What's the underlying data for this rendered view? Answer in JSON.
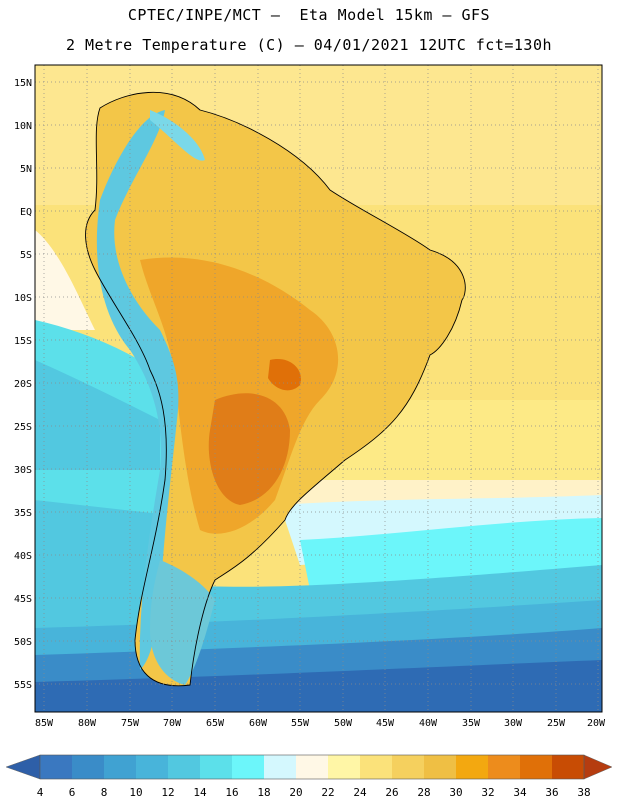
{
  "header": {
    "line1": "CPTEC/INPE/MCT –  Eta Model 15km – GFS",
    "line2": "2 Metre Temperature (C) – 04/01/2021 12UTC fct=130h"
  },
  "map": {
    "lat_labels": [
      "15N",
      "10N",
      "5N",
      "EQ",
      "5S",
      "10S",
      "15S",
      "20S",
      "25S",
      "30S",
      "35S",
      "40S",
      "45S",
      "50S",
      "55S"
    ],
    "lon_labels": [
      "85W",
      "80W",
      "75W",
      "70W",
      "65W",
      "60W",
      "55W",
      "50W",
      "45W",
      "40W",
      "35W",
      "30W",
      "25W",
      "20W"
    ]
  },
  "colorbar": {
    "labels": [
      "4",
      "6",
      "8",
      "10",
      "12",
      "14",
      "16",
      "18",
      "20",
      "22",
      "24",
      "26",
      "28",
      "30",
      "32",
      "34",
      "36",
      "38"
    ],
    "colors": [
      "#3a78c0",
      "#3a8cc8",
      "#40a2d2",
      "#48b4da",
      "#52c8e0",
      "#5ce0ea",
      "#6cf6fa",
      "#d4f8fe",
      "#fff8e6",
      "#fff6a6",
      "#fbe27a",
      "#f5d05e",
      "#efbf44",
      "#f3a810",
      "#ed8c1c",
      "#e07008",
      "#c84c04"
    ],
    "low_color": "#2e5fa8",
    "high_color": "#b53c10"
  }
}
